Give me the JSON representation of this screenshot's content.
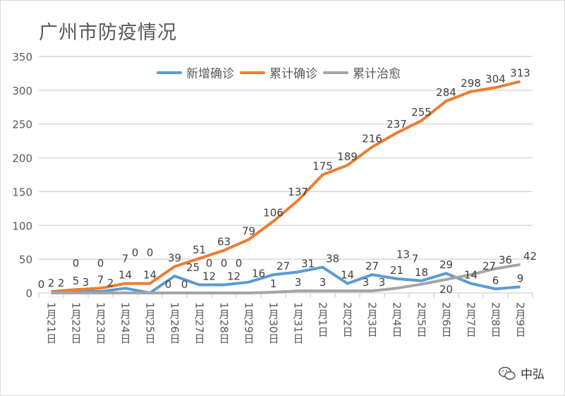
{
  "chart_data": {
    "type": "line",
    "title": "广州市防疫情况",
    "categories": [
      "1月21日",
      "1月22日",
      "1月23日",
      "1月24日",
      "1月25日",
      "1月26日",
      "1月27日",
      "1月28日",
      "1月29日",
      "1月30日",
      "1月31日",
      "2月1日",
      "2月2日",
      "2月3日",
      "2月4日",
      "2月5日",
      "2月6日",
      "2月7日",
      "2月8日",
      "2月9日"
    ],
    "series": [
      {
        "name": "新增确诊",
        "color": "#5b9bd5",
        "values": [
          2,
          3,
          2,
          7,
          0,
          25,
          12,
          12,
          16,
          27,
          31,
          38,
          14,
          27,
          21,
          18,
          29,
          14,
          6,
          9
        ]
      },
      {
        "name": "累计确诊",
        "color": "#ed7d31",
        "values": [
          2,
          5,
          7,
          14,
          14,
          39,
          51,
          63,
          79,
          106,
          137,
          175,
          189,
          216,
          237,
          255,
          284,
          298,
          304,
          313
        ]
      },
      {
        "name": "累计治愈",
        "color": "#a5a5a5",
        "values": [
          0,
          0,
          0,
          0,
          0,
          0,
          0,
          0,
          0,
          1,
          3,
          3,
          3,
          3,
          7,
          13,
          20,
          27,
          36,
          42
        ]
      }
    ],
    "ylim": [
      0,
      350
    ],
    "yticks": [
      "0",
      "50",
      "100",
      "150",
      "200",
      "250",
      "300",
      "350"
    ],
    "grid": true,
    "legend_position": "top"
  },
  "watermark": {
    "text": "中弘",
    "icon": "wechat-icon"
  }
}
